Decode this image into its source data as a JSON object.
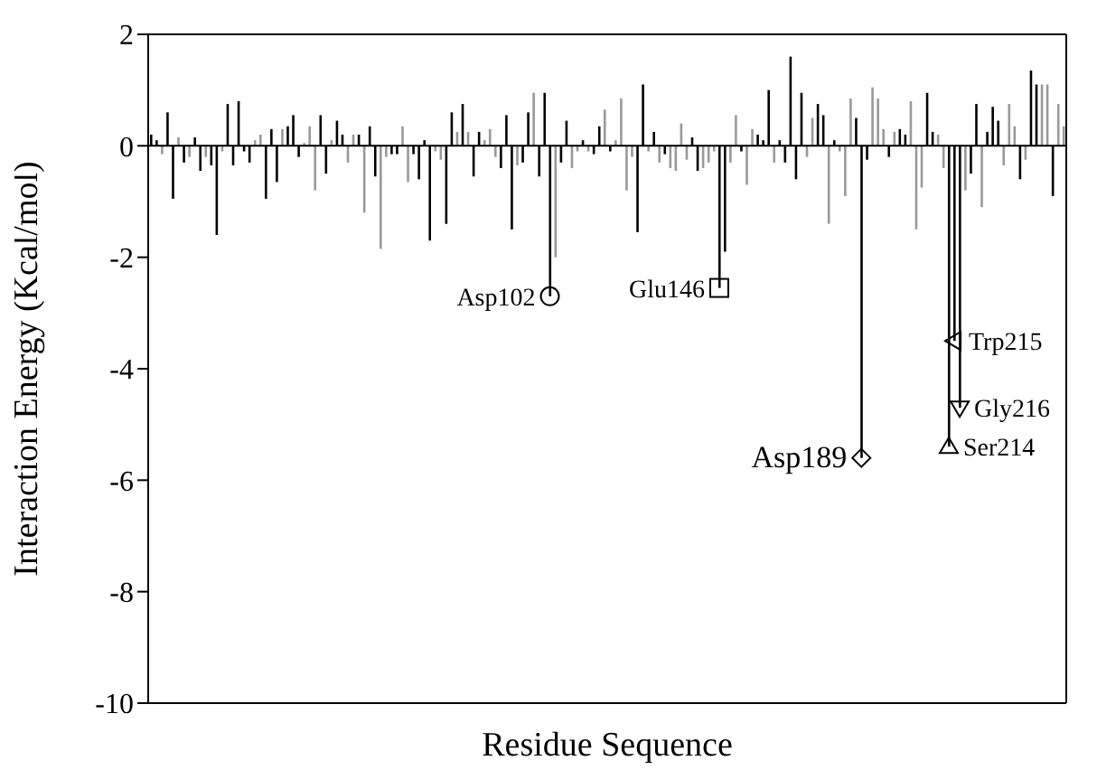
{
  "chart_data": {
    "type": "bar",
    "xlabel": "Residue Sequence",
    "ylabel": "Interaction Energy (Kcal/mol)",
    "ylim": [
      -10,
      2
    ],
    "yticks": [
      2,
      0,
      -2,
      -4,
      -6,
      -8,
      -10
    ],
    "tick_labels": "y",
    "categories": [
      null,
      null,
      null,
      null,
      null,
      null,
      null,
      null,
      null,
      null,
      null,
      null,
      null,
      null,
      null,
      null,
      null,
      null,
      null,
      null,
      null,
      null,
      null,
      null,
      null,
      null,
      null,
      null,
      null,
      null,
      null,
      null,
      null,
      null,
      null,
      null,
      null,
      null,
      null,
      null,
      null,
      null,
      null,
      null,
      null,
      null,
      null,
      null,
      null,
      null,
      null,
      null,
      null,
      null,
      null,
      null,
      null,
      null,
      null,
      null,
      null,
      null,
      null,
      null,
      null,
      null,
      null,
      null,
      null,
      null,
      null,
      null,
      null,
      null,
      null,
      null,
      null,
      null,
      null,
      null,
      null,
      null,
      null,
      null,
      null,
      null,
      null,
      null,
      null,
      null,
      null,
      null,
      null,
      null,
      null,
      null,
      null,
      null,
      null,
      null,
      null,
      null,
      null,
      null,
      null,
      null,
      null,
      null,
      null,
      null,
      null,
      null,
      null,
      null,
      null,
      null,
      null,
      null,
      null,
      null,
      null,
      null,
      null,
      null,
      null,
      null,
      null,
      null,
      null,
      null,
      null,
      null,
      null,
      null,
      null,
      null,
      null,
      null,
      null,
      null,
      null,
      null,
      null,
      null,
      null,
      null,
      null,
      null,
      null,
      null,
      null,
      null,
      null,
      null,
      null,
      null,
      null,
      null,
      null,
      null,
      null,
      null,
      null,
      null,
      null,
      null,
      null,
      null
    ],
    "values": [
      0.2,
      0.1,
      -0.15,
      0.6,
      -0.95,
      0.15,
      -0.3,
      -0.2,
      0.15,
      -0.45,
      -0.2,
      -0.35,
      -1.6,
      -0.1,
      0.75,
      -0.35,
      0.8,
      -0.1,
      -0.3,
      0.1,
      0.2,
      -0.95,
      0.3,
      -0.65,
      0.3,
      0.35,
      0.55,
      -0.2,
      0.05,
      0.35,
      -0.8,
      0.55,
      -0.5,
      0.1,
      0.45,
      0.2,
      -0.3,
      0.2,
      0.2,
      -1.2,
      0.35,
      -0.55,
      -1.85,
      -0.2,
      -0.15,
      -0.15,
      0.35,
      -0.65,
      -0.15,
      -0.6,
      0.1,
      -1.7,
      -0.1,
      -0.25,
      -1.4,
      0.6,
      0.25,
      0.75,
      0.25,
      -0.55,
      0.25,
      0.1,
      0.3,
      -0.2,
      -0.4,
      0.55,
      -1.5,
      -0.35,
      -0.3,
      0.6,
      0.95,
      -0.55,
      0.95,
      -2.7,
      -2.0,
      -0.3,
      0.45,
      -0.4,
      -0.1,
      0.1,
      -0.1,
      -0.15,
      0.35,
      0.65,
      -0.1,
      0.1,
      0.85,
      -0.8,
      -0.2,
      -1.55,
      1.1,
      -0.1,
      0.25,
      -0.3,
      -0.15,
      -0.4,
      -0.45,
      0.4,
      -0.25,
      0.15,
      -0.45,
      -0.4,
      -0.3,
      -0.1,
      -2.55,
      -1.9,
      -0.3,
      0.55,
      -0.1,
      -0.7,
      0.3,
      0.2,
      0.1,
      1.0,
      -0.3,
      0.1,
      -0.3,
      1.6,
      -0.6,
      0.95,
      -0.2,
      0.5,
      0.75,
      0.55,
      -1.4,
      0.1,
      -0.1,
      -0.9,
      0.85,
      0.5,
      -5.6,
      -0.25,
      1.05,
      0.85,
      0.3,
      -0.2,
      0.25,
      0.3,
      0.2,
      0.8,
      -1.5,
      -0.75,
      0.95,
      0.25,
      0.2,
      -0.4,
      -5.4,
      -3.5,
      -4.7,
      -0.8,
      -0.5,
      0.75,
      -1.1,
      0.25,
      0.7,
      0.45,
      -0.35,
      0.75,
      0.35,
      -0.6,
      -0.25,
      1.35,
      1.1,
      1.1,
      1.1,
      -0.9,
      0.75,
      0.35
    ],
    "colors": [
      "#000000",
      "#000000",
      "#999999",
      "#000000",
      "#000000",
      "#999999",
      "#000000",
      "#999999",
      "#000000",
      "#000000",
      "#999999",
      "#000000",
      "#000000",
      "#999999",
      "#000000",
      "#000000",
      "#000000",
      "#000000",
      "#000000",
      "#999999",
      "#999999",
      "#000000",
      "#000000",
      "#000000",
      "#999999",
      "#000000",
      "#000000",
      "#000000",
      "#999999",
      "#999999",
      "#999999",
      "#000000",
      "#000000",
      "#999999",
      "#000000",
      "#000000",
      "#999999",
      "#999999",
      "#000000",
      "#999999",
      "#000000",
      "#000000",
      "#999999",
      "#999999",
      "#000000",
      "#000000",
      "#999999",
      "#999999",
      "#000000",
      "#000000",
      "#000000",
      "#000000",
      "#999999",
      "#999999",
      "#000000",
      "#000000",
      "#999999",
      "#000000",
      "#999999",
      "#000000",
      "#000000",
      "#999999",
      "#999999",
      "#999999",
      "#000000",
      "#000000",
      "#000000",
      "#999999",
      "#000000",
      "#000000",
      "#999999",
      "#000000",
      "#000000",
      "#000000",
      "#999999",
      "#000000",
      "#000000",
      "#999999",
      "#999999",
      "#000000",
      "#999999",
      "#000000",
      "#000000",
      "#999999",
      "#000000",
      "#999999",
      "#999999",
      "#999999",
      "#999999",
      "#000000",
      "#000000",
      "#999999",
      "#000000",
      "#999999",
      "#000000",
      "#999999",
      "#999999",
      "#999999",
      "#999999",
      "#000000",
      "#000000",
      "#999999",
      "#999999",
      "#999999",
      "#000000",
      "#000000",
      "#999999",
      "#999999",
      "#000000",
      "#999999",
      "#999999",
      "#000000",
      "#000000",
      "#000000",
      "#999999",
      "#000000",
      "#000000",
      "#000000",
      "#000000",
      "#000000",
      "#999999",
      "#999999",
      "#000000",
      "#000000",
      "#999999",
      "#000000",
      "#999999",
      "#999999",
      "#999999",
      "#000000",
      "#000000",
      "#000000",
      "#999999",
      "#999999",
      "#999999",
      "#000000",
      "#999999",
      "#000000",
      "#000000",
      "#999999",
      "#999999",
      "#999999",
      "#000000",
      "#000000",
      "#999999",
      "#999999",
      "#000000",
      "#000000",
      "#000000",
      "#999999",
      "#000000",
      "#000000",
      "#999999",
      "#000000",
      "#000000",
      "#000000",
      "#999999",
      "#999999",
      "#999999",
      "#000000",
      "#999999",
      "#000000",
      "#000000",
      "#999999",
      "#999999",
      "#000000",
      "#999999",
      "#999999"
    ],
    "ref_lines": [
      {
        "axis": "y",
        "value": 0,
        "color": "#000000"
      }
    ],
    "annotations": [
      "Asp102",
      "Glu146",
      "Asp189",
      "Ser214",
      "Trp215",
      "Gly216"
    ]
  }
}
